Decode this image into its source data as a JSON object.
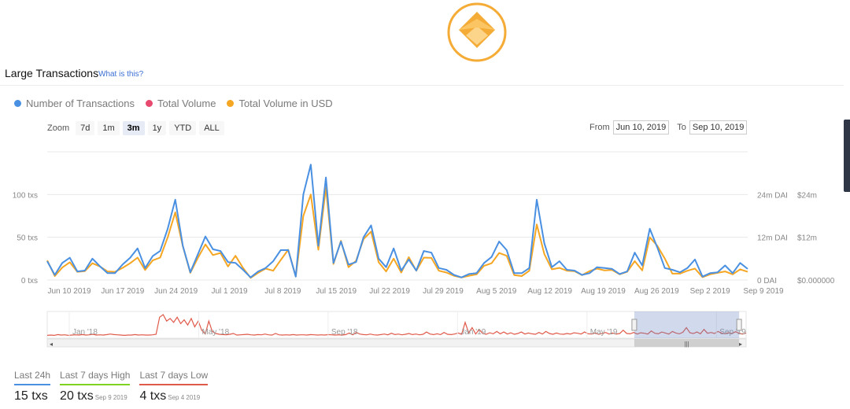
{
  "header": {
    "title": "Large Transactions",
    "help_link": "What is this?"
  },
  "legend": [
    {
      "label": "Number of Transactions",
      "color": "#4a90e2"
    },
    {
      "label": "Total Volume",
      "color": "#e84a6f"
    },
    {
      "label": "Total Volume in USD",
      "color": "#f5a623"
    }
  ],
  "zoom": {
    "label": "Zoom",
    "buttons": [
      "7d",
      "1m",
      "3m",
      "1y",
      "YTD",
      "ALL"
    ],
    "active": "3m"
  },
  "range": {
    "from_label": "From",
    "from": "Jun 10, 2019",
    "to_label": "To",
    "to": "Sep 10, 2019"
  },
  "chart_data": {
    "type": "line",
    "x_ticks": [
      "Jun 10 2019",
      "Jun 17 2019",
      "Jun 24 2019",
      "Jul 1 2019",
      "Jul 8 2019",
      "Jul 15 2019",
      "Jul 22 2019",
      "Jul 29 2019",
      "Aug 5 2019",
      "Aug 12 2019",
      "Aug 19 2019",
      "Aug 26 2019",
      "Sep 2 2019",
      "Sep 9 2019"
    ],
    "y_left_ticks": [
      "0 txs",
      "50 txs",
      "100 txs"
    ],
    "y_right_ticks": [
      "0 DAI",
      "12m DAI",
      "24m DAI"
    ],
    "y_right2_ticks": [
      "$0.000000",
      "$12m",
      "$24m"
    ],
    "y_left_range": [
      0,
      150
    ],
    "y_right_range_millions": [
      0,
      36
    ],
    "grid": true,
    "series": [
      {
        "name": "Number of Transactions",
        "color": "#4a90e2",
        "axis": "left",
        "values": [
          22,
          6,
          20,
          26,
          10,
          11,
          25,
          16,
          8,
          8,
          18,
          26,
          37,
          14,
          28,
          34,
          60,
          94,
          40,
          9,
          30,
          51,
          36,
          34,
          21,
          20,
          12,
          3,
          10,
          14,
          22,
          35,
          35,
          4,
          100,
          135,
          40,
          120,
          20,
          45,
          18,
          21,
          50,
          64,
          25,
          15,
          37,
          11,
          24,
          11,
          34,
          32,
          14,
          12,
          6,
          3,
          7,
          8,
          20,
          27,
          45,
          35,
          8,
          8,
          14,
          94,
          43,
          15,
          22,
          12,
          11,
          6,
          8,
          15,
          14,
          13,
          7,
          10,
          32,
          17,
          60,
          38,
          14,
          12,
          9,
          14,
          24,
          4,
          8,
          9,
          17,
          8,
          20,
          13
        ]
      },
      {
        "name": "Total Volume in USD",
        "color": "#f5a623",
        "axis": "right",
        "unit": "millions",
        "values": [
          5.5,
          1.1,
          3.5,
          5.0,
          2.3,
          2.5,
          4.7,
          3.8,
          2.4,
          2.3,
          3.4,
          4.7,
          6.3,
          2.8,
          5.5,
          6.3,
          12,
          19,
          9.5,
          2.0,
          6.2,
          10,
          7.0,
          7.6,
          3.8,
          6.8,
          3.4,
          0.6,
          2.0,
          3.2,
          2.6,
          5.6,
          8.5,
          1.0,
          18,
          24,
          8.5,
          26,
          4.5,
          11,
          3.6,
          5.4,
          11.5,
          13.6,
          5.0,
          2.4,
          6.0,
          2.1,
          6.4,
          2.6,
          6.3,
          6.2,
          2.6,
          2.1,
          1.2,
          0.7,
          1.2,
          1.6,
          4.0,
          4.7,
          7.6,
          6.8,
          1.4,
          1.1,
          2.6,
          15.6,
          7.3,
          3.0,
          3.4,
          2.6,
          2.5,
          1.4,
          2.5,
          3.2,
          2.7,
          2.8,
          1.6,
          2.3,
          5.3,
          2.7,
          12,
          9.6,
          6.0,
          1.8,
          1.8,
          2.6,
          3.2,
          0.8,
          1.6,
          2.0,
          2.4,
          1.6,
          3.0,
          2.3
        ]
      }
    ],
    "navigator": {
      "labels": [
        "Jan '18",
        "May '18",
        "Sep '18",
        "Jan '19",
        "May '19",
        "Sep '19"
      ],
      "color": "#e05a4a",
      "values": [
        0.5,
        0.6,
        0.5,
        0.8,
        0.6,
        0.7,
        0.5,
        0.6,
        0.7,
        0.6,
        0.8,
        0.6,
        0.7,
        0.9,
        0.6,
        0.7,
        0.6,
        0.8,
        1.0,
        0.8,
        0.7,
        0.6,
        0.5,
        0.6,
        0.6,
        0.8,
        0.6,
        0.7,
        0.6,
        0.6,
        0.7,
        0.9,
        7.5,
        8.5,
        6.0,
        7.0,
        5.5,
        7.5,
        5.0,
        6.5,
        4.5,
        7.0,
        3.8,
        6.0,
        2.5,
        1.0,
        6.0,
        2.0,
        1.2,
        0.9,
        0.8,
        0.7,
        0.9,
        1.2,
        0.6,
        0.7,
        0.8,
        0.9,
        0.7,
        0.6,
        0.8,
        0.7,
        1.0,
        0.7,
        0.6,
        1.2,
        0.7,
        0.6,
        0.7,
        0.6,
        0.8,
        0.6,
        0.7,
        0.7,
        0.6,
        0.8,
        0.7,
        0.6,
        0.7,
        0.6,
        0.8,
        0.7,
        0.6,
        0.7,
        0.6,
        0.8,
        1.4,
        0.7,
        1.6,
        1.0,
        0.8,
        0.7,
        1.0,
        0.7,
        0.6,
        0.8,
        1.0,
        0.7,
        1.3,
        0.8,
        1.0,
        0.7,
        0.9,
        1.2,
        0.8,
        1.0,
        0.7,
        0.9,
        1.8,
        1.0,
        0.8,
        1.1,
        0.8,
        1.6,
        0.9,
        0.8,
        1.0,
        1.4,
        0.9,
        5.5,
        1.5,
        3.5,
        1.0,
        2.8,
        1.2,
        0.9,
        1.5,
        1.1,
        2.0,
        1.1,
        1.8,
        1.0,
        1.5,
        0.9,
        1.2,
        1.8,
        1.0,
        1.4,
        1.1,
        0.9,
        1.6,
        1.0,
        2.0,
        1.2,
        0.9,
        1.4,
        1.0,
        0.9,
        1.2,
        1.0,
        1.5,
        1.3,
        1.0,
        1.8,
        1.1,
        1.0,
        1.4,
        0.9,
        1.2,
        1.6,
        1.0,
        1.4,
        1.0,
        1.2,
        2.5,
        1.2,
        1.1,
        1.6,
        1.0,
        1.5,
        1.3,
        1.0,
        2.2,
        1.3,
        1.1,
        1.8,
        1.4,
        1.0,
        2.0,
        1.4,
        1.1,
        1.7,
        3.5,
        1.5,
        1.2,
        1.8,
        1.1,
        2.8,
        1.3,
        1.6,
        1.2,
        2.0,
        1.4,
        1.1,
        1.5,
        1.2,
        1.9,
        1.3,
        1.0,
        1.4
      ]
    },
    "navigator_selection": [
      0.84,
      0.99
    ]
  },
  "stats": [
    {
      "label": "Last 24h",
      "value": "15 txs",
      "date": "",
      "color": "#4a90e2"
    },
    {
      "label": "Last 7 days High",
      "value": "20 txs",
      "date": "Sep 9 2019",
      "color": "#7ed321"
    },
    {
      "label": "Last 7 days Low",
      "value": "4 txs",
      "date": "Sep 4 2019",
      "color": "#e05a4a"
    }
  ]
}
